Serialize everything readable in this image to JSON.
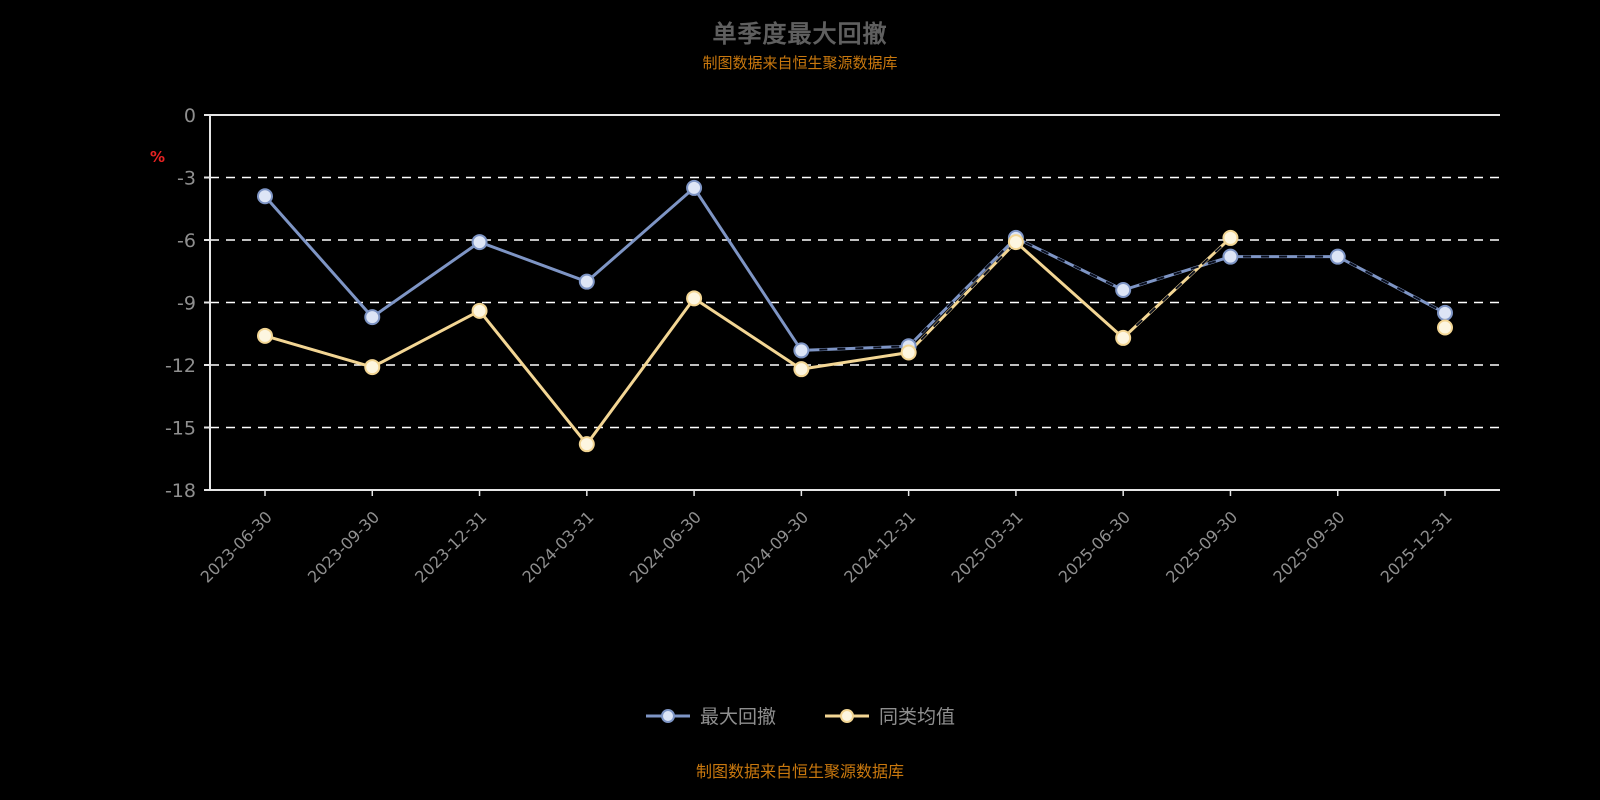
{
  "page": {
    "background": "#000000"
  },
  "chart_data": {
    "type": "line",
    "title": "单季度最大回撤",
    "subtitle": "制图数据来自恒生聚源数据库",
    "source_note": "制图数据来自恒生聚源数据库",
    "ylabel": "%",
    "xlabel": "",
    "ylim": [
      -18,
      0
    ],
    "yticks": [
      0,
      -3,
      -6,
      -9,
      -12,
      -15,
      -18
    ],
    "grid": "horizontal-dashed",
    "legend_position": "bottom-center",
    "categories": [
      "2023-06-30",
      "2023-09-30",
      "2023-12-31",
      "2024-03-31",
      "2024-06-30",
      "2024-09-30",
      "2024-12-31",
      "2025-03-31",
      "2025-06-30",
      "2025-09-30",
      "2025-09-30",
      "2025-12-31"
    ],
    "series": [
      {
        "name": "最大回撤",
        "color": "#7e95c5",
        "marker_fill": "#dde5f6",
        "values": [
          -3.9,
          -9.7,
          -6.1,
          -8.0,
          -3.5,
          -11.3,
          -11.1,
          -5.9,
          -8.4,
          -6.8,
          -6.8,
          -9.5
        ]
      },
      {
        "name": "同类均值",
        "color": "#f3d694",
        "marker_fill": "#fdf6e0",
        "values": [
          -10.6,
          -12.1,
          -9.4,
          -15.8,
          -8.8,
          -12.2,
          -11.4,
          -6.1,
          -10.7,
          -5.9,
          null,
          -10.2
        ]
      }
    ],
    "colors": {
      "title": "#5f5f5f",
      "subtitle": "#c9780e",
      "axis_text": "#8f8f8f",
      "axis_line": "#e6e6e6",
      "grid_line": "#ffffff",
      "ylabel": "#e62222",
      "legend_text": "#8f8f8f",
      "dash_overlay": "#0a0f1e",
      "background": "#000000"
    }
  }
}
